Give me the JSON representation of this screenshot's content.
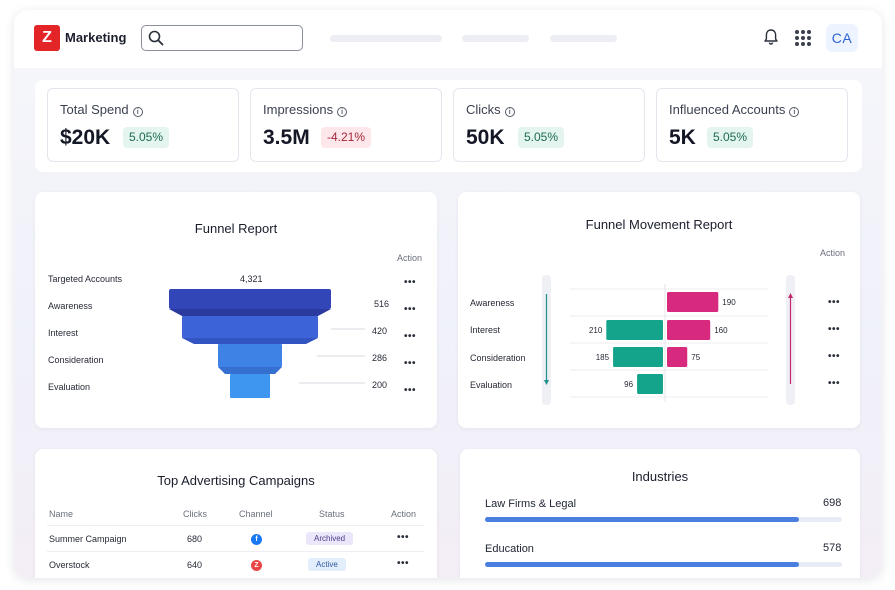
{
  "header": {
    "logo_letter": "Z",
    "app_name": "Marketing",
    "search_placeholder": "",
    "avatar_initials": "CA"
  },
  "kpis": [
    {
      "label": "Total Spend",
      "value": "$20K",
      "change": "5.05%",
      "trend": "positive"
    },
    {
      "label": "Impressions",
      "value": "3.5M",
      "change": "-4.21%",
      "trend": "negative"
    },
    {
      "label": "Clicks",
      "value": "50K",
      "change": "5.05%",
      "trend": "positive"
    },
    {
      "label": "Influenced Accounts",
      "value": "5K",
      "change": "5.05%",
      "trend": "positive"
    }
  ],
  "funnel_report": {
    "title": "Funnel Report",
    "action_header": "Action",
    "stages": [
      {
        "label": "Targeted Accounts",
        "value": "4,321"
      },
      {
        "label": "Awareness",
        "value": "516"
      },
      {
        "label": "Interest",
        "value": "420"
      },
      {
        "label": "Consideration",
        "value": "286"
      },
      {
        "label": "Evaluation",
        "value": "200"
      }
    ],
    "action_label": "•••"
  },
  "funnel_movement": {
    "title": "Funnel Movement Report",
    "action_header": "Action",
    "action_label": "•••",
    "rows": [
      {
        "label": "Awareness",
        "left": null,
        "right": 190
      },
      {
        "label": "Interest",
        "left": 210,
        "right": 160
      },
      {
        "label": "Consideration",
        "left": 185,
        "right": 75
      },
      {
        "label": "Evaluation",
        "left": 96,
        "right": null
      }
    ],
    "colors": {
      "left": "#14a38b",
      "right": "#d72a7e"
    }
  },
  "campaigns": {
    "title": "Top Advertising Campaigns",
    "columns": [
      "Name",
      "Clicks",
      "Channel",
      "Status",
      "Action"
    ],
    "rows": [
      {
        "name": "Summer Campaign",
        "clicks": "680",
        "channel_icon": "facebook-icon",
        "channel_glyph": "f",
        "channel_color": "#1877f2",
        "status": "Archived"
      },
      {
        "name": "Overstock",
        "clicks": "640",
        "channel_icon": "zoho-icon",
        "channel_glyph": "Z",
        "channel_color": "#e84545",
        "status": "Active"
      }
    ],
    "action_label": "•••"
  },
  "industries": {
    "title": "Industries",
    "items": [
      {
        "label": "Law Firms & Legal",
        "value": "698",
        "fraction": 0.88
      },
      {
        "label": "Education",
        "value": "578",
        "fraction": 0.88
      }
    ],
    "bar_color": "#4a7fe0"
  }
}
